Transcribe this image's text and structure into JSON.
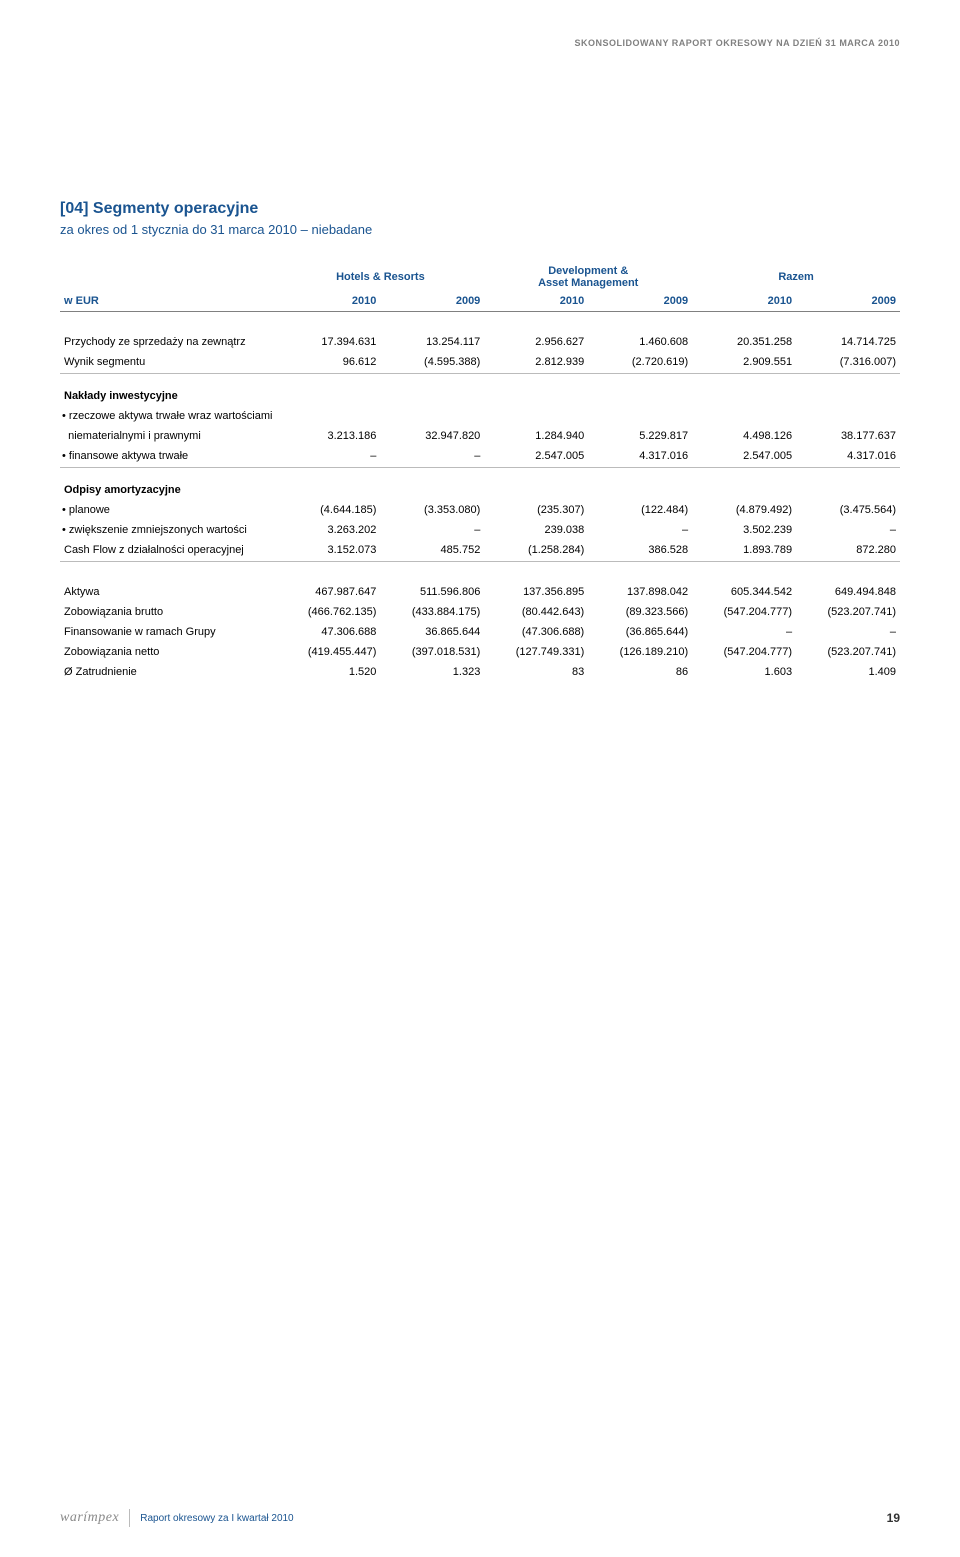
{
  "header": {
    "text": "SKONSOLIDOWANY RAPORT OKRESOWY NA DZIEŃ 31 MARCA 2010"
  },
  "section": {
    "code": "[04]",
    "title": "Segmenty operacyjne",
    "subtitle": "za okres od 1 stycznia do 31 marca 2010 – niebadane"
  },
  "table": {
    "group_headers": [
      "Hotels & Resorts",
      "Development &\nAsset Management",
      "Razem"
    ],
    "w_eur": "w EUR",
    "years": [
      "2010",
      "2009",
      "2010",
      "2009",
      "2010",
      "2009"
    ],
    "rows_revenue": [
      {
        "label": "Przychody ze sprzedaży na zewnątrz",
        "cells": [
          "17.394.631",
          "13.254.117",
          "2.956.627",
          "1.460.608",
          "20.351.258",
          "14.714.725"
        ]
      },
      {
        "label": "Wynik segmentu",
        "cells": [
          "96.612",
          "(4.595.388)",
          "2.812.939",
          "(2.720.619)",
          "2.909.551",
          "(7.316.007)"
        ]
      }
    ],
    "section_naklady": "Nakłady inwestycyjne",
    "rows_naklady": [
      {
        "label": "• rzeczowe aktywa trwałe wraz wartościami",
        "cells": [
          "",
          "",
          "",
          "",
          "",
          ""
        ]
      },
      {
        "label": "  niematerialnymi i prawnymi",
        "cells": [
          "3.213.186",
          "32.947.820",
          "1.284.940",
          "5.229.817",
          "4.498.126",
          "38.177.637"
        ]
      },
      {
        "label": "• finansowe aktywa trwałe",
        "cells": [
          "–",
          "–",
          "2.547.005",
          "4.317.016",
          "2.547.005",
          "4.317.016"
        ]
      }
    ],
    "section_odpisy": "Odpisy amortyzacyjne",
    "rows_odpisy": [
      {
        "label": "• planowe",
        "cells": [
          "(4.644.185)",
          "(3.353.080)",
          "(235.307)",
          "(122.484)",
          "(4.879.492)",
          "(3.475.564)"
        ]
      },
      {
        "label": "• zwiększenie zmniejszonych wartości",
        "cells": [
          "3.263.202",
          "–",
          "239.038",
          "–",
          "3.502.239",
          "–"
        ]
      },
      {
        "label": "Cash Flow z działalności operacyjnej",
        "cells": [
          "3.152.073",
          "485.752",
          "(1.258.284)",
          "386.528",
          "1.893.789",
          "872.280"
        ]
      }
    ],
    "rows_footer": [
      {
        "label": "Aktywa",
        "cells": [
          "467.987.647",
          "511.596.806",
          "137.356.895",
          "137.898.042",
          "605.344.542",
          "649.494.848"
        ]
      },
      {
        "label": "Zobowiązania brutto",
        "cells": [
          "(466.762.135)",
          "(433.884.175)",
          "(80.442.643)",
          "(89.323.566)",
          "(547.204.777)",
          "(523.207.741)"
        ]
      },
      {
        "label": "Finansowanie w ramach Grupy",
        "cells": [
          "47.306.688",
          "36.865.644",
          "(47.306.688)",
          "(36.865.644)",
          "–",
          "–"
        ]
      },
      {
        "label": "Zobowiązania netto",
        "cells": [
          "(419.455.447)",
          "(397.018.531)",
          "(127.749.331)",
          "(126.189.210)",
          "(547.204.777)",
          "(523.207.741)"
        ]
      },
      {
        "label": "Ø Zatrudnienie",
        "cells": [
          "1.520",
          "1.323",
          "83",
          "86",
          "1.603",
          "1.409"
        ]
      }
    ]
  },
  "footer": {
    "brand": "warímpex",
    "doc": "Raport okresowy za I kwartał 2010",
    "page": "19"
  }
}
